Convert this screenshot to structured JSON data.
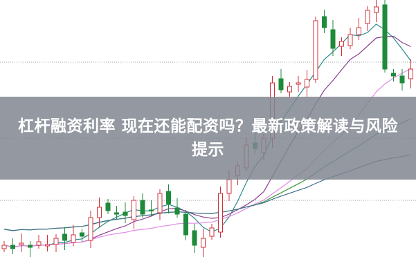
{
  "title": "杠杆融资利率 现在还能配资吗？最新政策解读与风险提示",
  "chart": {
    "type": "candlestick",
    "up_color": "#d0303a",
    "down_color": "#1f8a3a",
    "closes": [
      45,
      40,
      48,
      42,
      50,
      46,
      55,
      52,
      60,
      58,
      85,
      100,
      95,
      90,
      88,
      110,
      90,
      95,
      120,
      105,
      90,
      60,
      45,
      55,
      70,
      120,
      140,
      160,
      190,
      185,
      200,
      280,
      270,
      275,
      280,
      285,
      370,
      360,
      330,
      340,
      350,
      360,
      385,
      390,
      300,
      290,
      280,
      300
    ],
    "moving_averages": [
      {
        "period": 5,
        "color": "#2a8a8a"
      },
      {
        "period": 10,
        "color": "#8a3f8f"
      },
      {
        "period": 20,
        "color": "#e28ae6"
      },
      {
        "period": 30,
        "color": "#3a9a3a"
      },
      {
        "period": 60,
        "color": "#3e6e8a"
      }
    ],
    "grid": "dotted horizontal"
  }
}
